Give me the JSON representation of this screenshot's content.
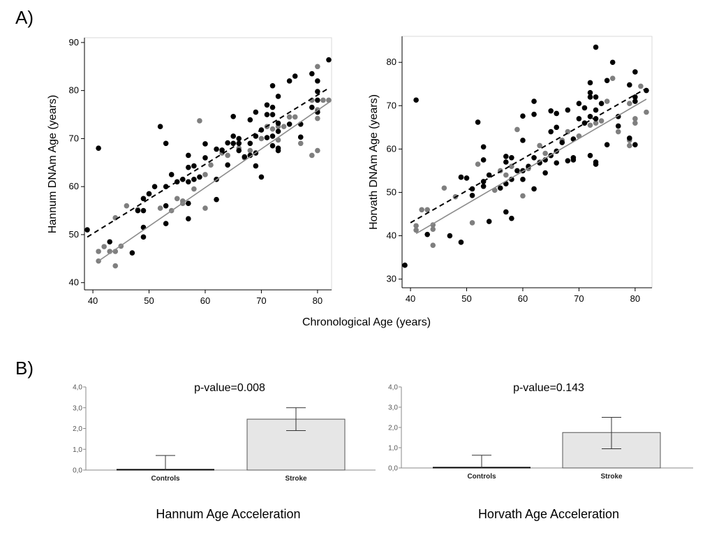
{
  "panel_labels": {
    "a": "A)",
    "b": "B)"
  },
  "shared_xlabel": "Chronological Age (years)",
  "colors": {
    "stroke": "#000000",
    "control": "#7f7f7f",
    "bar_fill": "#e6e6e6"
  },
  "chart_data": [
    {
      "id": "hannum-scatter",
      "type": "scatter",
      "xlabel": "Chronological Age (years)",
      "ylabel": "Hannum DNAm Age (years)",
      "xlim": [
        38.5,
        82.5
      ],
      "ylim": [
        38.5,
        91
      ],
      "xticks": [
        40,
        50,
        60,
        70,
        80
      ],
      "yticks": [
        40,
        50,
        60,
        70,
        80,
        90
      ],
      "grid": false,
      "series": [
        {
          "group": "stroke",
          "color": "#000000",
          "points": [
            [
              39,
              51
            ],
            [
              41,
              68
            ],
            [
              43,
              48.5
            ],
            [
              47,
              46.2
            ],
            [
              48,
              55
            ],
            [
              49,
              57.5
            ],
            [
              49,
              55
            ],
            [
              49,
              51.5
            ],
            [
              49,
              49.5
            ],
            [
              50,
              58.5
            ],
            [
              51,
              60
            ],
            [
              52,
              72.5
            ],
            [
              53,
              69
            ],
            [
              53,
              60
            ],
            [
              53,
              56
            ],
            [
              53,
              52.3
            ],
            [
              54,
              62.5
            ],
            [
              55,
              61
            ],
            [
              56,
              61.5
            ],
            [
              57,
              66.5
            ],
            [
              57,
              64
            ],
            [
              57,
              61
            ],
            [
              57,
              56.5
            ],
            [
              57,
              53.3
            ],
            [
              58,
              64.3
            ],
            [
              58,
              61.5
            ],
            [
              59,
              62
            ],
            [
              60,
              68.9
            ],
            [
              60,
              66
            ],
            [
              62,
              67.8
            ],
            [
              62,
              61.5
            ],
            [
              62,
              57.3
            ],
            [
              63,
              67.6
            ],
            [
              64,
              69.1
            ],
            [
              64,
              64.5
            ],
            [
              65,
              74.6
            ],
            [
              65,
              70.5
            ],
            [
              65,
              69
            ],
            [
              66,
              70
            ],
            [
              66,
              69
            ],
            [
              66,
              67.5
            ],
            [
              67,
              66.2
            ],
            [
              68,
              73.9
            ],
            [
              68,
              69
            ],
            [
              68,
              66.5
            ],
            [
              69,
              75.5
            ],
            [
              69,
              70.5
            ],
            [
              69,
              67
            ],
            [
              69,
              64.3
            ],
            [
              70,
              71.8
            ],
            [
              70,
              62
            ],
            [
              71,
              77
            ],
            [
              71,
              75
            ],
            [
              71,
              70.2
            ],
            [
              72,
              81
            ],
            [
              72,
              76.5
            ],
            [
              72,
              75
            ],
            [
              72,
              70.5
            ],
            [
              72,
              68.5
            ],
            [
              73,
              78.8
            ],
            [
              73,
              73.2
            ],
            [
              73,
              71.5
            ],
            [
              73,
              68
            ],
            [
              73,
              67.5
            ],
            [
              75,
              82
            ],
            [
              75,
              73
            ],
            [
              76,
              83
            ],
            [
              77,
              73
            ],
            [
              77,
              70.3
            ],
            [
              79,
              83.5
            ],
            [
              79,
              76.5
            ],
            [
              80,
              82
            ],
            [
              80,
              79.8
            ],
            [
              80,
              78
            ],
            [
              80,
              75.5
            ],
            [
              82,
              86.4
            ]
          ]
        },
        {
          "group": "control",
          "color": "#7f7f7f",
          "points": [
            [
              41,
              46.5
            ],
            [
              41,
              44.5
            ],
            [
              42,
              47.5
            ],
            [
              43,
              46.5
            ],
            [
              44,
              53.5
            ],
            [
              44,
              46.5
            ],
            [
              44,
              43.5
            ],
            [
              45,
              47.6
            ],
            [
              46,
              56
            ],
            [
              48,
              55.2
            ],
            [
              50,
              58.5
            ],
            [
              52,
              55.5
            ],
            [
              54,
              55
            ],
            [
              55,
              57.5
            ],
            [
              56,
              57
            ],
            [
              56,
              56.5
            ],
            [
              58,
              59.5
            ],
            [
              59,
              73.7
            ],
            [
              60,
              62.5
            ],
            [
              60,
              55.5
            ],
            [
              61,
              64.5
            ],
            [
              63,
              67
            ],
            [
              64,
              66.5
            ],
            [
              66,
              68
            ],
            [
              67,
              66
            ],
            [
              68,
              67.5
            ],
            [
              70,
              70
            ],
            [
              71,
              72.5
            ],
            [
              72,
              72
            ],
            [
              73,
              69.7
            ],
            [
              73,
              72.5
            ],
            [
              74,
              72.5
            ],
            [
              75,
              74.5
            ],
            [
              76,
              74.5
            ],
            [
              77,
              69
            ],
            [
              79,
              78
            ],
            [
              79,
              66.5
            ],
            [
              80,
              85
            ],
            [
              80,
              76
            ],
            [
              80,
              74.2
            ],
            [
              80,
              67.5
            ],
            [
              81,
              78
            ],
            [
              82,
              78
            ]
          ]
        }
      ],
      "fit_lines": [
        {
          "group": "stroke",
          "style": "dashed",
          "from": [
            39,
            49.5
          ],
          "to": [
            82,
            80.5
          ]
        },
        {
          "group": "control",
          "style": "solid",
          "from": [
            41,
            44.5
          ],
          "to": [
            82,
            77.5
          ]
        }
      ]
    },
    {
      "id": "horvath-scatter",
      "type": "scatter",
      "xlabel": "Chronological Age (years)",
      "ylabel": "Horvath DNAm Age (years)",
      "xlim": [
        38.5,
        83
      ],
      "ylim": [
        28,
        86
      ],
      "xticks": [
        40,
        50,
        60,
        70,
        80
      ],
      "yticks": [
        30,
        40,
        50,
        60,
        70,
        80
      ],
      "grid": false,
      "series": [
        {
          "group": "stroke",
          "color": "#000000",
          "points": [
            [
              39,
              33.2
            ],
            [
              41,
              71.3
            ],
            [
              43,
              40.3
            ],
            [
              47,
              40
            ],
            [
              49,
              53.5
            ],
            [
              49,
              38.5
            ],
            [
              50,
              53.3
            ],
            [
              51,
              49.3
            ],
            [
              51,
              50.8
            ],
            [
              52,
              66.2
            ],
            [
              53,
              60.5
            ],
            [
              53,
              57.5
            ],
            [
              53,
              52.5
            ],
            [
              53,
              51.4
            ],
            [
              54,
              54
            ],
            [
              54,
              43.3
            ],
            [
              56,
              51
            ],
            [
              57,
              58.3
            ],
            [
              57,
              57
            ],
            [
              57,
              52
            ],
            [
              57,
              45.5
            ],
            [
              58,
              58
            ],
            [
              58,
              53
            ],
            [
              58,
              44
            ],
            [
              59,
              55
            ],
            [
              60,
              67.6
            ],
            [
              60,
              62
            ],
            [
              60,
              55
            ],
            [
              60,
              53
            ],
            [
              61,
              56
            ],
            [
              62,
              71
            ],
            [
              62,
              68
            ],
            [
              62,
              58
            ],
            [
              62,
              50.8
            ],
            [
              63,
              56.8
            ],
            [
              64,
              57.5
            ],
            [
              64,
              54.5
            ],
            [
              65,
              68.8
            ],
            [
              65,
              64
            ],
            [
              65,
              58.5
            ],
            [
              66,
              68.2
            ],
            [
              66,
              65
            ],
            [
              66,
              59.5
            ],
            [
              66,
              56.8
            ],
            [
              67,
              61.5
            ],
            [
              68,
              69
            ],
            [
              68,
              57.3
            ],
            [
              69,
              62.3
            ],
            [
              69,
              58
            ],
            [
              69,
              57.5
            ],
            [
              70,
              70.5
            ],
            [
              70,
              67
            ],
            [
              71,
              69.5
            ],
            [
              71,
              66
            ],
            [
              72,
              75.3
            ],
            [
              72,
              73
            ],
            [
              72,
              72
            ],
            [
              72,
              67.5
            ],
            [
              72,
              58.5
            ],
            [
              73,
              83.5
            ],
            [
              73,
              72
            ],
            [
              73,
              69
            ],
            [
              73,
              67
            ],
            [
              73,
              57
            ],
            [
              73,
              56.5
            ],
            [
              74,
              70.5
            ],
            [
              75,
              75.8
            ],
            [
              75,
              61
            ],
            [
              76,
              80
            ],
            [
              77,
              67.5
            ],
            [
              77,
              65.3
            ],
            [
              79,
              74.8
            ],
            [
              79,
              62.5
            ],
            [
              80,
              77.8
            ],
            [
              80,
              72
            ],
            [
              80,
              71
            ],
            [
              80,
              61
            ],
            [
              82,
              73.5
            ]
          ]
        },
        {
          "group": "control",
          "color": "#7f7f7f",
          "points": [
            [
              41,
              42.3
            ],
            [
              41,
              41.3
            ],
            [
              42,
              46
            ],
            [
              43,
              46
            ],
            [
              44,
              42.5
            ],
            [
              44,
              41.5
            ],
            [
              44,
              37.8
            ],
            [
              46,
              51
            ],
            [
              48,
              49
            ],
            [
              49,
              53.5
            ],
            [
              51,
              43
            ],
            [
              52,
              56.5
            ],
            [
              55,
              50.5
            ],
            [
              56,
              55
            ],
            [
              57,
              54
            ],
            [
              58,
              56
            ],
            [
              59,
              64.5
            ],
            [
              60,
              49.2
            ],
            [
              61,
              55.5
            ],
            [
              63,
              60.8
            ],
            [
              63,
              57
            ],
            [
              64,
              59
            ],
            [
              67,
              62
            ],
            [
              68,
              64
            ],
            [
              70,
              63
            ],
            [
              71,
              66
            ],
            [
              72,
              65.5
            ],
            [
              73,
              66
            ],
            [
              74,
              66.5
            ],
            [
              75,
              71
            ],
            [
              76,
              76.3
            ],
            [
              77,
              64
            ],
            [
              79,
              70.5
            ],
            [
              79,
              62
            ],
            [
              79,
              60.8
            ],
            [
              80,
              67
            ],
            [
              80,
              66
            ],
            [
              81,
              74.5
            ],
            [
              82,
              68.5
            ]
          ]
        }
      ],
      "fit_lines": [
        {
          "group": "stroke",
          "style": "dashed",
          "from": [
            40,
            43
          ],
          "to": [
            82,
            74
          ]
        },
        {
          "group": "control",
          "style": "solid",
          "from": [
            41,
            40.5
          ],
          "to": [
            82,
            71.5
          ]
        }
      ]
    },
    {
      "id": "hannum-bar",
      "type": "bar",
      "title": "p-value=0.008",
      "caption": "Hannum Age Acceleration",
      "categories": [
        "Controls",
        "Stroke"
      ],
      "values": [
        0.0,
        2.45
      ],
      "error_low": [
        0.0,
        1.9
      ],
      "error_high": [
        0.7,
        3.0
      ],
      "ylim": [
        0,
        4
      ],
      "yticks": [
        "0,0",
        "1,0",
        "2,0",
        "3,0",
        "4,0"
      ]
    },
    {
      "id": "horvath-bar",
      "type": "bar",
      "title": "p-value=0.143",
      "caption": "Horvath Age Acceleration",
      "categories": [
        "Controls",
        "Stroke"
      ],
      "values": [
        0.0,
        1.75
      ],
      "error_low": [
        0.0,
        0.95
      ],
      "error_high": [
        0.63,
        2.5
      ],
      "ylim": [
        0,
        4
      ],
      "yticks": [
        "0,0",
        "1,0",
        "2,0",
        "3,0",
        "4,0"
      ]
    }
  ]
}
